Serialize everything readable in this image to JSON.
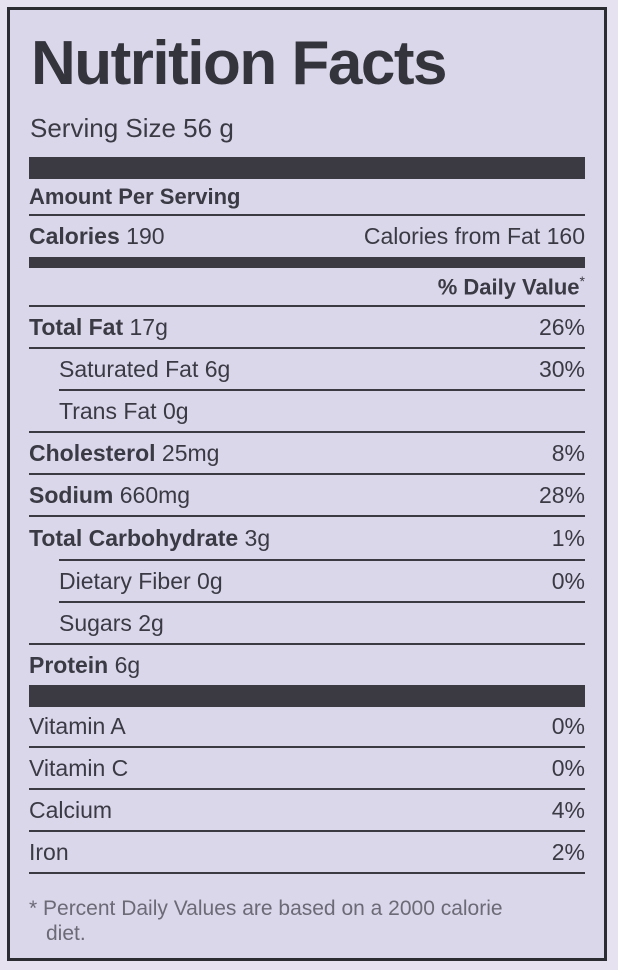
{
  "label": {
    "title": "Nutrition Facts",
    "serving_size": "Serving Size 56 g",
    "amount_per_serving": "Amount Per Serving",
    "calories_label": "Calories",
    "calories_value": "190",
    "calories_from_fat": "Calories from Fat 160",
    "daily_value_header": "% Daily Value",
    "daily_value_mark": "*"
  },
  "nutrients": [
    {
      "name": "Total Fat",
      "amount": "17g",
      "dv": "26%"
    },
    {
      "name": "Saturated Fat",
      "amount": "6g",
      "dv": "30%"
    },
    {
      "name": "Trans Fat",
      "amount": "0g",
      "dv": ""
    },
    {
      "name": "Cholesterol",
      "amount": "25mg",
      "dv": "8%"
    },
    {
      "name": "Sodium",
      "amount": "660mg",
      "dv": "28%"
    },
    {
      "name": "Total Carbohydrate",
      "amount": "3g",
      "dv": "1%"
    },
    {
      "name": "Dietary Fiber",
      "amount": "0g",
      "dv": "0%"
    },
    {
      "name": "Sugars",
      "amount": "2g",
      "dv": ""
    },
    {
      "name": "Protein",
      "amount": "6g",
      "dv": ""
    }
  ],
  "vitamins": [
    {
      "name": "Vitamin A",
      "dv": "0%"
    },
    {
      "name": "Vitamin C",
      "dv": "0%"
    },
    {
      "name": "Calcium",
      "dv": "4%"
    },
    {
      "name": "Iron",
      "dv": "2%"
    }
  ],
  "footnote": {
    "line1": "* Percent Daily Values are based on a 2000 calorie",
    "line2": "diet."
  },
  "colors": {
    "background": "#dbd7eb",
    "bars": "#3b3a42",
    "text": "#3a3a44"
  }
}
